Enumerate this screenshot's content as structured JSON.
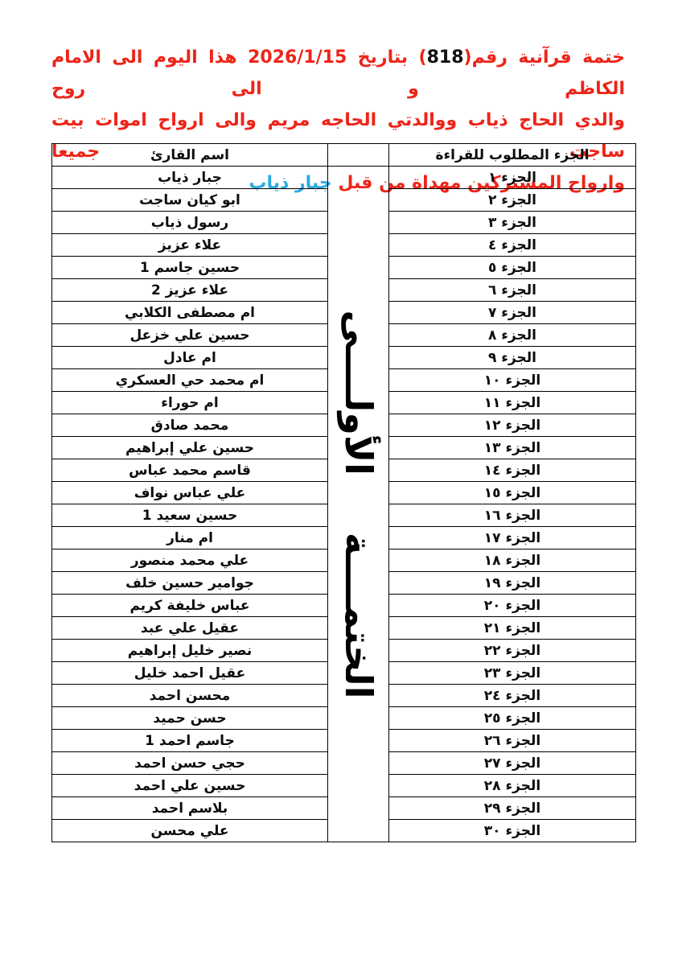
{
  "page": {
    "background": "#ffffff",
    "language": "arabic",
    "description_colors": {
      "red_accent": "#ee2418",
      "black_text": "#111111",
      "cyan_accent": "#2caae2",
      "table_border": "#000000"
    }
  },
  "header": {
    "lines": [
      {
        "justify": true,
        "segments": [
          {
            "text": "ختمة قرآنية رقم(",
            "color": "#ee2418"
          },
          {
            "text": "818",
            "color": "#111111"
          },
          {
            "text": ") بتاريخ 2026/1/15 هذا اليوم الى الامام الكاظم و الى روح",
            "color": "#ee2418"
          }
        ]
      },
      {
        "justify": true,
        "segments": [
          {
            "text": "والدي الحاج ذياب ووالدتي الحاجه مريم والى ارواح اموات بيت ساجت جميعا",
            "color": "#ee2418"
          }
        ]
      },
      {
        "justify": false,
        "segments": [
          {
            "text": "وارواح المشتركين مهداة من قبل ",
            "color": "#ee2418"
          },
          {
            "text": "جبار ذياب",
            "color": "#2caae2"
          }
        ]
      }
    ]
  },
  "table": {
    "juz_header": "الجزء المطلوب للقراءة",
    "name_header": "اسم القارئ",
    "khatma_label": "الختمــــة الأولــــى",
    "rows": [
      {
        "juz": "الجزء ١",
        "reader": "جبار ذياب"
      },
      {
        "juz": "الجزء ٢",
        "reader": "ابو كيان ساجت"
      },
      {
        "juz": "الجزء ٣",
        "reader": "رسول ذياب"
      },
      {
        "juz": "الجزء ٤",
        "reader": "علاء عزيز"
      },
      {
        "juz": "الجزء ٥",
        "reader": "حسين جاسم 1"
      },
      {
        "juz": "الجزء ٦",
        "reader": "علاء عزيز 2"
      },
      {
        "juz": "الجزء ٧",
        "reader": "ام مصطفى الكلابي"
      },
      {
        "juz": "الجزء ٨",
        "reader": "حسين علي خزعل"
      },
      {
        "juz": "الجزء ٩",
        "reader": "ام عادل"
      },
      {
        "juz": "الجزء ١٠",
        "reader": "ام محمد حي العسكري"
      },
      {
        "juz": "الجزء ١١",
        "reader": "ام حوراء"
      },
      {
        "juz": "الجزء ١٢",
        "reader": "محمد صادق"
      },
      {
        "juz": "الجزء ١٣",
        "reader": "حسين علي إبراهيم"
      },
      {
        "juz": "الجزء ١٤",
        "reader": "قاسم محمد عباس"
      },
      {
        "juz": "الجزء ١٥",
        "reader": "علي عباس نواف"
      },
      {
        "juz": "الجزء ١٦",
        "reader": "حسين سعيد 1"
      },
      {
        "juz": "الجزء ١٧",
        "reader": "ام منار"
      },
      {
        "juz": "الجزء ١٨",
        "reader": "علي محمد منصور"
      },
      {
        "juz": "الجزء ١٩",
        "reader": "جوامير حسين خلف"
      },
      {
        "juz": "الجزء ٢٠",
        "reader": "عباس خليفة كريم"
      },
      {
        "juz": "الجزء ٢١",
        "reader": "عقيل علي عبد"
      },
      {
        "juz": "الجزء ٢٢",
        "reader": "نصير خليل إبراهيم"
      },
      {
        "juz": "الجزء ٢٣",
        "reader": "عقيل احمد خليل"
      },
      {
        "juz": "الجزء ٢٤",
        "reader": "محسن احمد"
      },
      {
        "juz": "الجزء ٢٥",
        "reader": "حسن حميد"
      },
      {
        "juz": "الجزء ٢٦",
        "reader": "جاسم احمد 1"
      },
      {
        "juz": "الجزء ٢٧",
        "reader": "حجي حسن احمد"
      },
      {
        "juz": "الجزء ٢٨",
        "reader": "حسين علي احمد"
      },
      {
        "juz": "الجزء ٢٩",
        "reader": "بلاسم احمد"
      },
      {
        "juz": "الجزء ٣٠",
        "reader": "علي محسن"
      }
    ]
  }
}
